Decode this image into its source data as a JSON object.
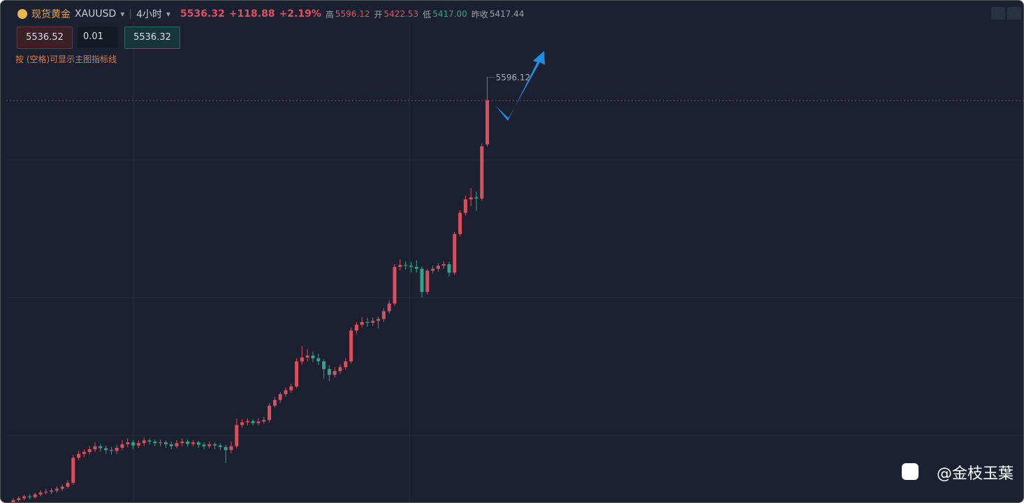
{
  "header": {
    "name": "现货黄金",
    "symbol": "XAUUSD",
    "period": "4小时",
    "price": "5536.32",
    "change": "+118.88",
    "percent": "+2.19%",
    "high_label": "高",
    "high": "5596.12",
    "open_label": "开",
    "open": "5422.53",
    "low_label": "低",
    "low": "5417.00",
    "prev_label": "昨收",
    "prev": "5417.44"
  },
  "order": {
    "sell": "5536.52",
    "lots": "0.01",
    "buy": "5536.32",
    "hint": "按 (空格)可显示主图指标线"
  },
  "watermark": "@金枝玉葉",
  "chart_data": {
    "type": "candlestick",
    "ylim": [
      4491,
      5795
    ],
    "up_color": "#d9505c",
    "down_color": "#2ea58a",
    "candles": [
      [
        4495,
        4506,
        4490,
        4500
      ],
      [
        4500,
        4510,
        4496,
        4505
      ],
      [
        4505,
        4514,
        4500,
        4510
      ],
      [
        4510,
        4516,
        4502,
        4508
      ],
      [
        4508,
        4520,
        4504,
        4515
      ],
      [
        4515,
        4526,
        4510,
        4520
      ],
      [
        4520,
        4530,
        4514,
        4522
      ],
      [
        4522,
        4531,
        4516,
        4525
      ],
      [
        4525,
        4536,
        4519,
        4530
      ],
      [
        4530,
        4541,
        4524,
        4535
      ],
      [
        4535,
        4552,
        4530,
        4545
      ],
      [
        4545,
        4618,
        4540,
        4610
      ],
      [
        4610,
        4628,
        4604,
        4620
      ],
      [
        4620,
        4632,
        4612,
        4625
      ],
      [
        4625,
        4640,
        4618,
        4632
      ],
      [
        4632,
        4650,
        4625,
        4640
      ],
      [
        4640,
        4646,
        4626,
        4635
      ],
      [
        4635,
        4642,
        4620,
        4630
      ],
      [
        4630,
        4638,
        4618,
        4628
      ],
      [
        4628,
        4644,
        4620,
        4636
      ],
      [
        4636,
        4656,
        4630,
        4645
      ],
      [
        4645,
        4660,
        4638,
        4650
      ],
      [
        4650,
        4656,
        4632,
        4642
      ],
      [
        4642,
        4655,
        4636,
        4648
      ],
      [
        4648,
        4662,
        4640,
        4655
      ],
      [
        4655,
        4660,
        4644,
        4652
      ],
      [
        4652,
        4658,
        4640,
        4648
      ],
      [
        4648,
        4657,
        4640,
        4650
      ],
      [
        4650,
        4655,
        4636,
        4645
      ],
      [
        4645,
        4652,
        4632,
        4640
      ],
      [
        4640,
        4656,
        4634,
        4648
      ],
      [
        4648,
        4660,
        4640,
        4652
      ],
      [
        4652,
        4658,
        4638,
        4646
      ],
      [
        4646,
        4656,
        4640,
        4650
      ],
      [
        4650,
        4654,
        4636,
        4644
      ],
      [
        4644,
        4650,
        4632,
        4640
      ],
      [
        4640,
        4652,
        4634,
        4645
      ],
      [
        4645,
        4650,
        4632,
        4642
      ],
      [
        4642,
        4648,
        4630,
        4638
      ],
      [
        4638,
        4644,
        4596,
        4630
      ],
      [
        4630,
        4652,
        4622,
        4640
      ],
      [
        4640,
        4712,
        4634,
        4695
      ],
      [
        4695,
        4710,
        4688,
        4702
      ],
      [
        4702,
        4712,
        4694,
        4705
      ],
      [
        4705,
        4710,
        4694,
        4700
      ],
      [
        4700,
        4712,
        4695,
        4704
      ],
      [
        4704,
        4716,
        4698,
        4708
      ],
      [
        4708,
        4752,
        4702,
        4745
      ],
      [
        4745,
        4768,
        4740,
        4760
      ],
      [
        4760,
        4780,
        4752,
        4775
      ],
      [
        4775,
        4792,
        4768,
        4785
      ],
      [
        4785,
        4802,
        4778,
        4795
      ],
      [
        4795,
        4868,
        4790,
        4860
      ],
      [
        4860,
        4900,
        4852,
        4870
      ],
      [
        4870,
        4892,
        4860,
        4875
      ],
      [
        4875,
        4885,
        4858,
        4868
      ],
      [
        4868,
        4880,
        4850,
        4860
      ],
      [
        4860,
        4866,
        4815,
        4840
      ],
      [
        4840,
        4850,
        4808,
        4825
      ],
      [
        4825,
        4845,
        4818,
        4835
      ],
      [
        4835,
        4852,
        4828,
        4845
      ],
      [
        4845,
        4868,
        4838,
        4860
      ],
      [
        4860,
        4948,
        4855,
        4940
      ],
      [
        4940,
        4962,
        4932,
        4955
      ],
      [
        4955,
        4975,
        4948,
        4962
      ],
      [
        4962,
        4972,
        4950,
        4960
      ],
      [
        4960,
        4974,
        4952,
        4965
      ],
      [
        4965,
        4976,
        4945,
        4970
      ],
      [
        4970,
        4998,
        4962,
        4990
      ],
      [
        4990,
        5018,
        4984,
        5010
      ],
      [
        5010,
        5112,
        5004,
        5105
      ],
      [
        5105,
        5125,
        5096,
        5110
      ],
      [
        5110,
        5120,
        5098,
        5108
      ],
      [
        5108,
        5118,
        5090,
        5105
      ],
      [
        5105,
        5122,
        5090,
        5100
      ],
      [
        5100,
        5106,
        5025,
        5040
      ],
      [
        5040,
        5100,
        5034,
        5095
      ],
      [
        5095,
        5108,
        5088,
        5100
      ],
      [
        5100,
        5114,
        5092,
        5108
      ],
      [
        5108,
        5120,
        5100,
        5112
      ],
      [
        5112,
        5118,
        5080,
        5090
      ],
      [
        5090,
        5196,
        5084,
        5190
      ],
      [
        5190,
        5252,
        5184,
        5245
      ],
      [
        5245,
        5290,
        5238,
        5280
      ],
      [
        5280,
        5310,
        5262,
        5285
      ],
      [
        5285,
        5300,
        5250,
        5282
      ],
      [
        5282,
        5425,
        5276,
        5417.44
      ],
      [
        5422.53,
        5596.12,
        5417.0,
        5536.32
      ]
    ]
  }
}
